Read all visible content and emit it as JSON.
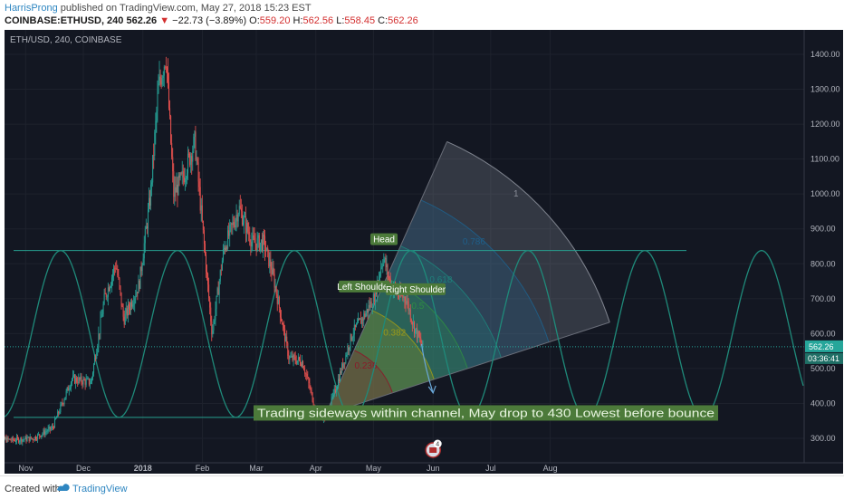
{
  "header": {
    "author": "HarrisProng",
    "published_text": " published on TradingView.com, May 27, 2018 15:23 EST",
    "symbol": "COINBASE:ETHUSD, 240",
    "last": "562.26",
    "change_arrow": "▼",
    "change": "−22.73 (−3.89%)",
    "o_label": "O:",
    "o_val": "559.20",
    "h_label": "H:",
    "h_val": "562.56",
    "l_label": "L:",
    "l_val": "558.45",
    "c_label": "C:",
    "c_val": "562.26"
  },
  "colors": {
    "background": "#131722",
    "price_up": "#26a69a",
    "price_down": "#ef5350",
    "sine": "#1f8a7a",
    "channel": "#27a08f",
    "label_bg": "#4c7a3a",
    "last_price_bg": "#26a69a",
    "fib_red": "#8b1a2a",
    "fib_yellow": "#9a9a1a",
    "fib_green": "#2f8a45",
    "fib_teal": "#1f7f7a",
    "fib_blue": "#1f5f8a",
    "fib_gray": "#8a8e99"
  },
  "chart_data": {
    "type": "candlestick",
    "title": "ETH/USD, 240, COINBASE",
    "x_ticks": [
      "Nov",
      "Dec",
      "2018",
      "Feb",
      "Mar",
      "Apr",
      "May",
      "Jun",
      "Jul",
      "Aug"
    ],
    "y_ticks": [
      "300.00",
      "400.00",
      "500.00",
      "600.00",
      "700.00",
      "800.00",
      "900.00",
      "1000.00",
      "1100.00",
      "1200.00",
      "1300.00",
      "1400.00"
    ],
    "ylim": [
      230,
      1470
    ],
    "last_price": "562.26",
    "countdown": "03:36:41",
    "path_points": [
      [
        "2017-10-15",
        300
      ],
      [
        "2017-10-25",
        295
      ],
      [
        "2017-11-05",
        300
      ],
      [
        "2017-11-15",
        330
      ],
      [
        "2017-11-25",
        470
      ],
      [
        "2017-12-05",
        460
      ],
      [
        "2017-12-12",
        700
      ],
      [
        "2017-12-18",
        800
      ],
      [
        "2017-12-22",
        640
      ],
      [
        "2017-12-30",
        740
      ],
      [
        "2018-01-05",
        1000
      ],
      [
        "2018-01-09",
        1300
      ],
      [
        "2018-01-13",
        1400
      ],
      [
        "2018-01-17",
        1000
      ],
      [
        "2018-01-22",
        1050
      ],
      [
        "2018-01-28",
        1150
      ],
      [
        "2018-02-06",
        600
      ],
      [
        "2018-02-12",
        840
      ],
      [
        "2018-02-20",
        960
      ],
      [
        "2018-02-27",
        860
      ],
      [
        "2018-03-05",
        860
      ],
      [
        "2018-03-10",
        760
      ],
      [
        "2018-03-18",
        530
      ],
      [
        "2018-03-25",
        520
      ],
      [
        "2018-04-01",
        380
      ],
      [
        "2018-04-06",
        360
      ],
      [
        "2018-04-10",
        420
      ],
      [
        "2018-04-20",
        600
      ],
      [
        "2018-04-26",
        650
      ],
      [
        "2018-05-01",
        700
      ],
      [
        "2018-05-06",
        820
      ],
      [
        "2018-05-10",
        740
      ],
      [
        "2018-05-14",
        710
      ],
      [
        "2018-05-18",
        700
      ],
      [
        "2018-05-22",
        620
      ],
      [
        "2018-05-26",
        570
      ],
      [
        "2018-05-27",
        562
      ]
    ],
    "projection": [
      [
        "2018-05-26",
        570
      ],
      [
        "2018-06-01",
        430
      ]
    ],
    "channel_upper": 838,
    "channel_lower": 360,
    "fib_levels": [
      {
        "label": "0.236"
      },
      {
        "label": "0.382"
      },
      {
        "label": "0.5"
      },
      {
        "label": "0.618"
      },
      {
        "label": "0.786"
      },
      {
        "label": "1"
      }
    ],
    "annotations": {
      "head": "Head",
      "left_shoulder": "Left Shoulder",
      "right_shoulder": "Right Shoulder",
      "note": "Trading sideways within channel, May drop to 430 Lowest before bounce"
    },
    "event_badge": "4",
    "grid": true
  },
  "footer": {
    "created_with": "Created with",
    "brand": "TradingView"
  }
}
